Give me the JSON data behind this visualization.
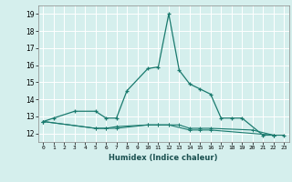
{
  "xlabel": "Humidex (Indice chaleur)",
  "main_x": [
    0,
    1,
    3,
    5,
    6,
    7,
    8,
    10,
    11,
    12,
    13,
    14,
    15,
    16,
    17,
    18,
    19,
    21,
    22,
    23
  ],
  "main_y": [
    12.7,
    12.9,
    13.3,
    13.3,
    12.9,
    12.9,
    14.5,
    15.8,
    15.9,
    19.0,
    15.7,
    14.9,
    14.6,
    14.3,
    12.9,
    12.9,
    12.9,
    11.9,
    11.9,
    11.9
  ],
  "flat1_x": [
    0,
    5,
    6,
    7,
    10,
    11,
    12,
    13,
    14,
    15,
    16,
    20,
    22
  ],
  "flat1_y": [
    12.7,
    12.3,
    12.3,
    12.4,
    12.5,
    12.5,
    12.5,
    12.5,
    12.3,
    12.3,
    12.3,
    12.2,
    11.9
  ],
  "flat2_x": [
    0,
    5,
    6,
    7,
    10,
    11,
    12,
    14,
    15,
    16,
    22
  ],
  "flat2_y": [
    12.7,
    12.3,
    12.3,
    12.3,
    12.5,
    12.5,
    12.5,
    12.2,
    12.2,
    12.2,
    11.9
  ],
  "bg_color": "#d5efed",
  "grid_color": "#ffffff",
  "line_color": "#1a7a6e",
  "ylim": [
    11.5,
    19.5
  ],
  "yticks": [
    12,
    13,
    14,
    15,
    16,
    17,
    18,
    19
  ],
  "xticks": [
    0,
    1,
    2,
    3,
    4,
    5,
    6,
    7,
    8,
    9,
    10,
    11,
    12,
    13,
    14,
    15,
    16,
    17,
    18,
    19,
    20,
    21,
    22,
    23
  ],
  "xlim": [
    -0.5,
    23.5
  ]
}
